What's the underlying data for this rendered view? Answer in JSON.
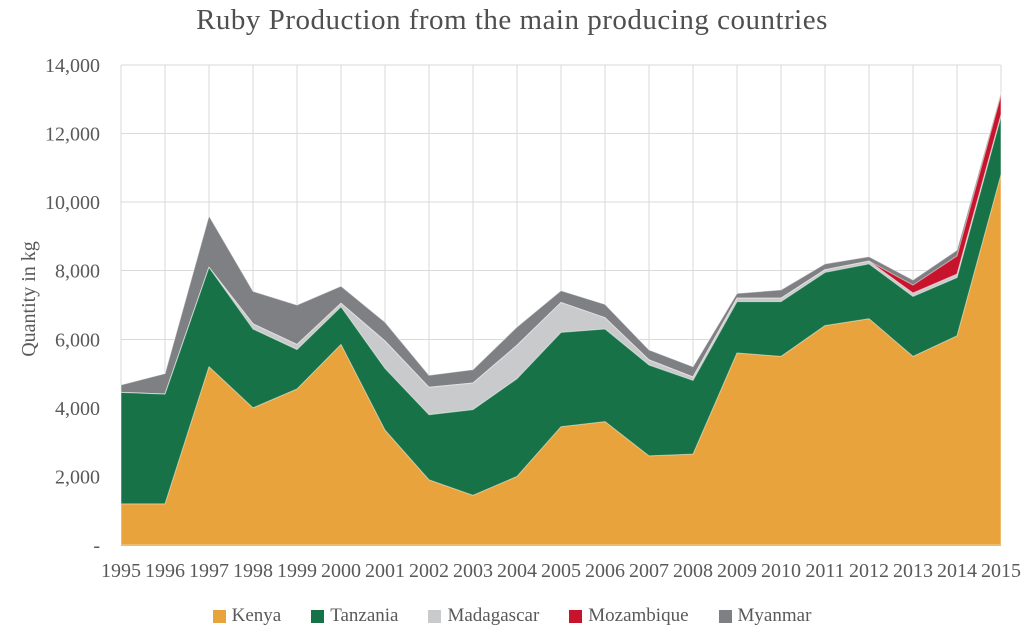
{
  "chart_data": {
    "type": "area",
    "stacked": true,
    "title": "Ruby Production from the main producing countries",
    "xlabel": "",
    "ylabel": "Quantity in kg",
    "x": [
      1995,
      1996,
      1997,
      1998,
      1999,
      2000,
      2001,
      2002,
      2003,
      2004,
      2005,
      2006,
      2007,
      2008,
      2009,
      2010,
      2011,
      2012,
      2013,
      2014,
      2015
    ],
    "series": [
      {
        "name": "Kenya",
        "color": "#E8A33D",
        "values": [
          1200,
          1200,
          5200,
          4000,
          4550,
          5850,
          3350,
          1900,
          1450,
          2000,
          3450,
          3600,
          2600,
          2650,
          5600,
          5500,
          6400,
          6600,
          5500,
          6100,
          10800
        ]
      },
      {
        "name": "Tanzania",
        "color": "#177347",
        "values": [
          3250,
          3200,
          2900,
          2300,
          1150,
          1100,
          1800,
          1900,
          2500,
          2850,
          2750,
          2700,
          2650,
          2150,
          1500,
          1600,
          1550,
          1600,
          1750,
          1700,
          1700
        ]
      },
      {
        "name": "Madagascar",
        "color": "#C9CACB",
        "values": [
          0,
          0,
          0,
          150,
          150,
          100,
          800,
          800,
          775,
          975,
          875,
          330,
          150,
          100,
          100,
          100,
          80,
          80,
          100,
          100,
          50
        ]
      },
      {
        "name": "Mozambique",
        "color": "#C8132C",
        "values": [
          0,
          0,
          0,
          0,
          0,
          0,
          0,
          0,
          0,
          0,
          0,
          0,
          0,
          0,
          0,
          0,
          0,
          0,
          230,
          530,
          575
        ]
      },
      {
        "name": "Myanmar",
        "color": "#7E8083",
        "values": [
          220,
          600,
          1500,
          950,
          1150,
          500,
          550,
          350,
          390,
          535,
          345,
          390,
          290,
          300,
          140,
          240,
          170,
          130,
          150,
          170,
          75
        ]
      }
    ],
    "ylim": [
      0,
      14000
    ],
    "ytick_step": 2000,
    "ytick_labels": [
      "-",
      "2,000",
      "4,000",
      "6,000",
      "8,000",
      "10,000",
      "12,000",
      "14,000"
    ],
    "grid": true,
    "legend_position": "bottom",
    "gridline_color": "#DADADA",
    "axis_line_color": "#C2C2C2",
    "text_color": "#595959"
  }
}
